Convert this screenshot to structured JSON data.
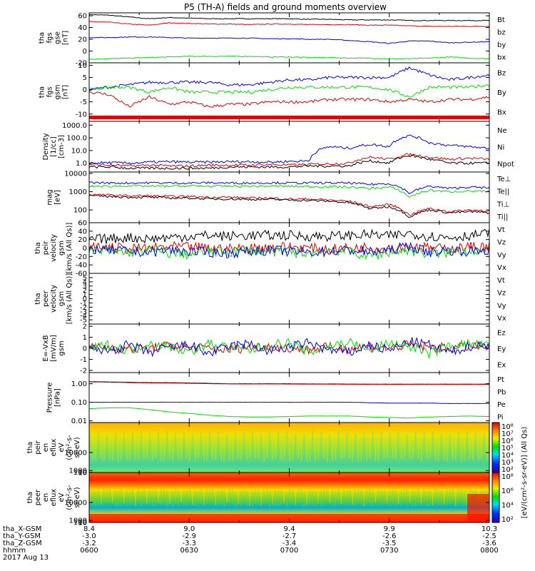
{
  "title": "P5 (TH-A) fields and ground moments overview",
  "colors": {
    "black": "#000000",
    "red": "#e00000",
    "blue": "#0000e6",
    "green": "#00dd00"
  },
  "time_ticks": [
    "0600",
    "0630",
    "0700",
    "0730",
    "0800"
  ],
  "ephemeris": {
    "labels": [
      "tha_X-GSM",
      "tha_Y-GSM",
      "tha_Z-GSM",
      "hhmm",
      "2017 Aug 13"
    ],
    "x": [
      "8.4",
      "9.0",
      "9.4",
      "9.9",
      "10.3"
    ],
    "y": [
      "-3.0",
      "-2.9",
      "-2.7",
      "-2.6",
      "-2.5"
    ],
    "z": [
      "-3.2",
      "-3.3",
      "-3.4",
      "-3.5",
      "-3.6"
    ]
  },
  "colorbar_label": "[eV/(cm²-s-sr-eV)] (All Qs)",
  "colorbar_ticks_1": [
    "10⁸",
    "10⁷",
    "10⁶",
    "10⁵",
    "10⁴",
    "10³",
    "10²"
  ],
  "colorbar_ticks_2": [
    "10⁸",
    "10⁶",
    "10⁴",
    "10²"
  ],
  "chart_data": [
    {
      "type": "line",
      "id": "fgs_gse",
      "ylabel": [
        "tha",
        "fgs",
        "gse",
        "[nT]"
      ],
      "ylim": [
        -20,
        65
      ],
      "ticks": [
        "60",
        "40",
        "20",
        "0",
        "-20"
      ],
      "series": [
        {
          "name": "Bt",
          "color": "black",
          "values": [
            62,
            61,
            58,
            55,
            57,
            56,
            55,
            55,
            55,
            55,
            55,
            54,
            54,
            53,
            53,
            53,
            52,
            52,
            52,
            52,
            52
          ]
        },
        {
          "name": "bz",
          "color": "red",
          "values": [
            50,
            49,
            46,
            44,
            48,
            47,
            46,
            46,
            45,
            46,
            46,
            45,
            45,
            45,
            44,
            44,
            43,
            42,
            42,
            42,
            42
          ]
        },
        {
          "name": "by",
          "color": "green",
          "values": [
            -14,
            -13,
            -12,
            -11,
            -10,
            -9,
            -9,
            -9,
            -9,
            -10,
            -10,
            -11,
            -11,
            -12,
            -12,
            -13,
            -13,
            -12,
            -10,
            -12,
            -13
          ]
        },
        {
          "name": "bx",
          "color": "blue",
          "values": [
            23,
            23,
            24,
            24,
            23,
            22,
            22,
            22,
            22,
            21,
            21,
            20,
            20,
            18,
            16,
            13,
            17,
            17,
            14,
            15,
            16
          ]
        }
      ]
    },
    {
      "type": "line",
      "id": "fgs_gsm",
      "ylabel": [
        "tha",
        "fgs",
        "gsm",
        "[nT]"
      ],
      "ylim": [
        -13,
        11
      ],
      "ticks": [
        "10",
        "5",
        "0",
        "-5",
        "-10"
      ],
      "series": [
        {
          "name": "Bz",
          "color": "blue",
          "values": [
            0,
            1,
            2,
            3,
            3,
            3,
            3,
            2,
            2,
            3,
            4,
            4,
            5,
            5,
            5,
            5,
            9,
            6,
            4,
            5,
            6
          ]
        },
        {
          "name": "By",
          "color": "green",
          "values": [
            0,
            1,
            1,
            -1,
            1,
            -1,
            -1,
            -1,
            -1,
            0,
            1,
            1,
            1,
            1,
            1,
            0,
            -3,
            1,
            1,
            1,
            2
          ]
        },
        {
          "name": "Bx",
          "color": "red",
          "values": [
            -1,
            -2,
            -7,
            -3,
            -6,
            -5,
            -7,
            -6,
            -6,
            -5,
            -5,
            -5,
            -4,
            -4,
            -4,
            -5,
            -4,
            -5,
            -4,
            -4,
            -3
          ]
        }
      ]
    },
    {
      "type": "line",
      "id": "density",
      "ylabel": [
        "Density",
        "[1/cc]",
        "[cm-3]"
      ],
      "log": true,
      "ylim": [
        0.2,
        2000
      ],
      "ticks": [
        "1000.0",
        "100.0",
        "10.0",
        "1.0",
        "0.1"
      ],
      "tickvals": [
        1000,
        100,
        10,
        1,
        0.1
      ],
      "series": [
        {
          "name": "Ne",
          "color": "red",
          "values": [
            0.8,
            0.7,
            0.6,
            0.7,
            0.6,
            0.6,
            0.7,
            0.7,
            0.7,
            0.8,
            0.7,
            0.8,
            0.9,
            1,
            3,
            2,
            5,
            3,
            2,
            2.5,
            2
          ]
        },
        {
          "name": "Ni",
          "color": "black",
          "values": [
            0.5,
            0.5,
            0.4,
            0.4,
            0.4,
            0.4,
            0.4,
            0.5,
            0.5,
            0.5,
            0.5,
            0.6,
            0.6,
            0.6,
            1.5,
            1,
            4,
            2,
            1,
            1,
            1
          ]
        },
        {
          "name": "Npot",
          "color": "blue",
          "values": [
            1,
            1.1,
            1,
            1.2,
            1.3,
            1.2,
            1.2,
            1.3,
            1.3,
            1.2,
            1.4,
            1.5,
            20,
            15,
            30,
            20,
            150,
            40,
            25,
            20,
            15
          ]
        }
      ]
    },
    {
      "type": "line",
      "id": "temp",
      "ylabel": [
        "mag",
        "[eV]"
      ],
      "log": true,
      "ylim": [
        20,
        12000
      ],
      "ticks": [
        "10000",
        "1000",
        "100"
      ],
      "tickvals": [
        10000,
        1000,
        100
      ],
      "series": [
        {
          "name": "Te⊥",
          "color": "red",
          "values": [
            700,
            650,
            600,
            600,
            550,
            550,
            500,
            500,
            450,
            450,
            400,
            400,
            350,
            300,
            150,
            200,
            50,
            120,
            80,
            100,
            90
          ]
        },
        {
          "name": "Te||",
          "color": "black",
          "values": [
            600,
            550,
            500,
            500,
            450,
            450,
            400,
            400,
            380,
            380,
            350,
            330,
            300,
            250,
            120,
            150,
            40,
            100,
            70,
            80,
            70
          ]
        },
        {
          "name": "Ti⊥",
          "color": "blue",
          "values": [
            3200,
            3000,
            3000,
            3100,
            3000,
            3000,
            3100,
            3000,
            3000,
            3100,
            3000,
            3000,
            3000,
            3000,
            2500,
            2800,
            800,
            2000,
            1500,
            1800,
            1600
          ]
        },
        {
          "name": "Ti||",
          "color": "green",
          "values": [
            2000,
            2000,
            2100,
            2000,
            2000,
            2100,
            2000,
            2000,
            2000,
            2000,
            2000,
            1900,
            1900,
            1800,
            1500,
            1800,
            500,
            1200,
            1000,
            1100,
            1000
          ]
        }
      ]
    },
    {
      "type": "line",
      "id": "peir_vel",
      "ylabel": [
        "tha",
        "peir",
        "velocity",
        "gsm",
        "[km/s (All Qs)]"
      ],
      "ylim": [
        -60,
        60
      ],
      "ticks": [
        "60",
        "40",
        "20",
        "0",
        "-20",
        "-40",
        "-60"
      ],
      "series": [
        {
          "name": "Vt",
          "color": "black",
          "values": [
            20,
            22,
            25,
            22,
            25,
            28,
            30,
            28,
            30,
            30,
            30,
            28,
            28,
            30,
            32,
            28,
            35,
            28,
            25,
            30,
            35
          ]
        },
        {
          "name": "Vz",
          "color": "red",
          "values": [
            0,
            2,
            -2,
            0,
            3,
            2,
            0,
            -2,
            0,
            2,
            3,
            0,
            -3,
            0,
            2,
            -2,
            5,
            0,
            -2,
            3,
            5
          ]
        },
        {
          "name": "Vy",
          "color": "green",
          "values": [
            -5,
            -8,
            -10,
            -5,
            -12,
            -15,
            -8,
            -10,
            -5,
            -8,
            -10,
            -12,
            -5,
            -8,
            -20,
            -10,
            -5,
            -15,
            -10,
            -5,
            -10
          ]
        },
        {
          "name": "Vx",
          "color": "blue",
          "values": [
            -2,
            -5,
            -8,
            -10,
            -5,
            -8,
            -10,
            -12,
            -8,
            -5,
            -8,
            -10,
            -8,
            -5,
            -10,
            -5,
            5,
            -10,
            -5,
            -8,
            -5
          ]
        }
      ]
    },
    {
      "type": "line",
      "id": "peer_vel",
      "ylabel": [
        "tha",
        "peer",
        "velocity",
        "gsm",
        "[km/s (All Qs)]"
      ],
      "ylim": [
        -6,
        6
      ],
      "ticks": [
        "5",
        "4",
        "3",
        "2",
        "1",
        "0",
        "-1",
        "-2",
        "-3",
        "-4",
        "-5"
      ],
      "series": [
        {
          "name": "Vt",
          "color": "black",
          "values": []
        },
        {
          "name": "Vz",
          "color": "red",
          "values": []
        },
        {
          "name": "Vy",
          "color": "green",
          "values": []
        },
        {
          "name": "Vx",
          "color": "blue",
          "values": []
        }
      ]
    },
    {
      "type": "line",
      "id": "efield",
      "ylabel": [
        "E=-VxB",
        "[mV/m]",
        "gsm"
      ],
      "ylim": [
        -2.2,
        2.2
      ],
      "ticks": [
        "2",
        "1",
        "0",
        "-1",
        "-2"
      ],
      "series": [
        {
          "name": "Ez",
          "color": "red",
          "values": [
            0,
            0.1,
            -0.1,
            0,
            0.2,
            0.1,
            0,
            -0.1,
            0.1,
            0.2,
            0,
            -0.1,
            0.1,
            0,
            0.2,
            0,
            0.3,
            0.1,
            0,
            0.2,
            0.1
          ]
        },
        {
          "name": "Ey",
          "color": "green",
          "values": [
            0,
            0.3,
            -0.2,
            0.5,
            0.2,
            -0.3,
            0.4,
            0.1,
            -0.2,
            0.3,
            0.5,
            -0.4,
            0.2,
            0.6,
            -0.3,
            0.5,
            0.2,
            -0.5,
            0.3,
            0.4,
            0.2
          ]
        },
        {
          "name": "Ex",
          "color": "blue",
          "values": [
            0,
            -0.2,
            0.3,
            -0.4,
            0.1,
            0.3,
            -0.5,
            0.2,
            0.4,
            -0.3,
            0.1,
            0.5,
            -0.2,
            -0.4,
            0.3,
            -0.2,
            0.6,
            0.3,
            -0.4,
            0.2,
            0.3
          ]
        }
      ]
    },
    {
      "type": "line",
      "id": "pressure",
      "ylabel": [
        "Pressure",
        "[nPa]"
      ],
      "log": true,
      "ylim": [
        0.008,
        4
      ],
      "ticks": [
        "1.00",
        "0.10",
        "0.01"
      ],
      "tickvals": [
        1,
        0.1,
        0.01
      ],
      "series": [
        {
          "name": "Pt",
          "color": "black",
          "values": [
            1.3,
            1.25,
            1.2,
            1.15,
            1.15,
            1.1,
            1.05,
            1.0,
            1.0,
            1.0,
            1.0,
            0.98,
            0.97,
            0.96,
            0.95,
            0.95,
            0.95,
            0.95,
            0.95,
            0.95,
            0.95
          ]
        },
        {
          "name": "Pb",
          "color": "red",
          "values": [
            1.25,
            1.2,
            1.15,
            1.1,
            1.1,
            1.05,
            1.0,
            0.98,
            0.97,
            0.97,
            0.96,
            0.95,
            0.94,
            0.93,
            0.92,
            0.92,
            0.92,
            0.92,
            0.92,
            0.92,
            0.92
          ]
        },
        {
          "name": "Pe",
          "color": "green",
          "values": [
            0.045,
            0.05,
            0.05,
            0.04,
            0.03,
            0.025,
            0.02,
            0.017,
            0.016,
            0.016,
            0.017,
            0.018,
            0.018,
            0.018,
            0.016,
            0.015,
            0.014,
            0.016,
            0.017,
            0.018,
            0.017
          ]
        },
        {
          "name": "Pi",
          "color": "blue",
          "values": [
            0.1,
            0.1,
            0.1,
            0.1,
            0.1,
            0.1,
            0.1,
            0.1,
            0.1,
            0.1,
            0.1,
            0.1,
            0.1,
            0.1,
            0.095,
            0.09,
            0.09,
            0.09,
            0.085,
            0.085,
            0.085
          ]
        }
      ]
    },
    {
      "type": "heatmap",
      "id": "peir_en",
      "ylabel": [
        "tha",
        "peir",
        "en",
        "eflux",
        "eV",
        "(cm²-s-",
        "sr-eV)"
      ],
      "ticks": [
        "10000",
        "1000",
        "100",
        "10"
      ],
      "tickvals": [
        10000,
        1000,
        100,
        10
      ],
      "ylim": [
        5,
        25000
      ]
    },
    {
      "type": "heatmap",
      "id": "peer_en",
      "ylabel": [
        "tha",
        "peer",
        "en",
        "eflux",
        "eV",
        "(cm²-s-",
        "sr-eV)"
      ],
      "ticks": [
        "10000",
        "1000",
        "100",
        "10"
      ],
      "tickvals": [
        10000,
        1000,
        100,
        10
      ],
      "ylim": [
        5,
        25000
      ]
    }
  ]
}
